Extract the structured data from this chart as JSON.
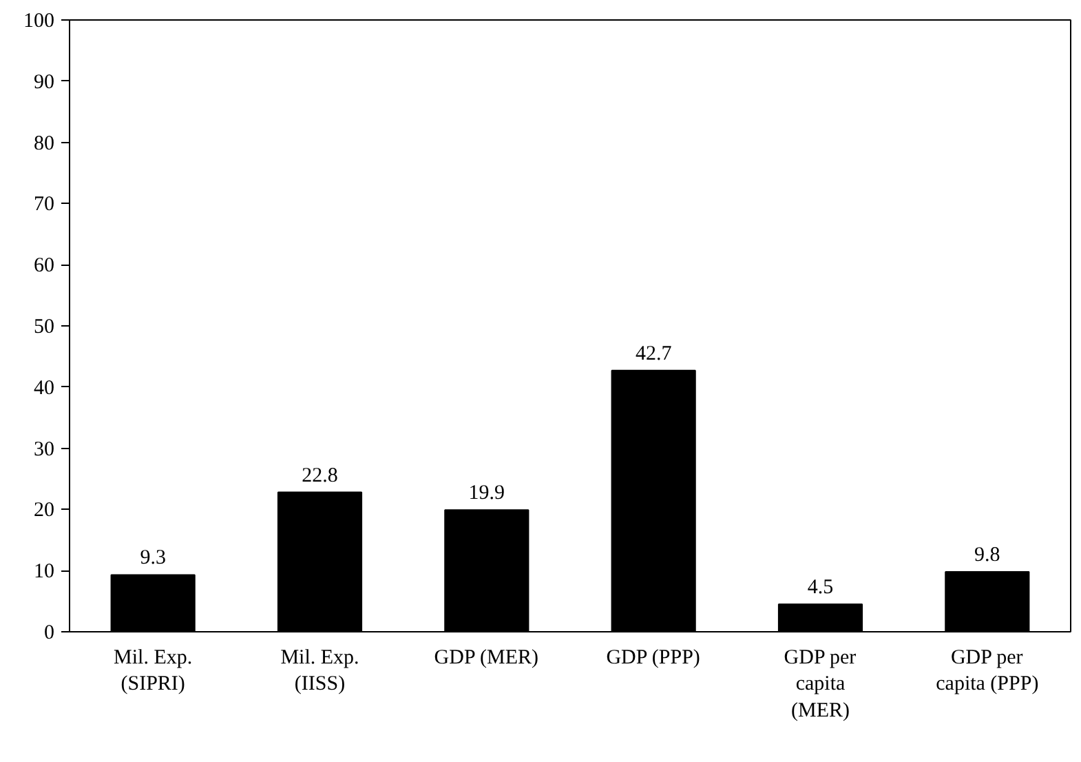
{
  "chart_data": {
    "type": "bar",
    "categories": [
      "Mil. Exp.\n(SIPRI)",
      "Mil. Exp.\n(IISS)",
      "GDP (MER)",
      "GDP (PPP)",
      "GDP per\ncapita\n(MER)",
      "GDP per\ncapita (PPP)"
    ],
    "values": [
      9.3,
      22.8,
      19.9,
      42.7,
      4.5,
      9.8
    ],
    "color": "#000000",
    "ylim": [
      0,
      100
    ],
    "yticks": [
      0,
      10,
      20,
      30,
      40,
      50,
      60,
      70,
      80,
      90,
      100
    ],
    "data_labels": true
  }
}
